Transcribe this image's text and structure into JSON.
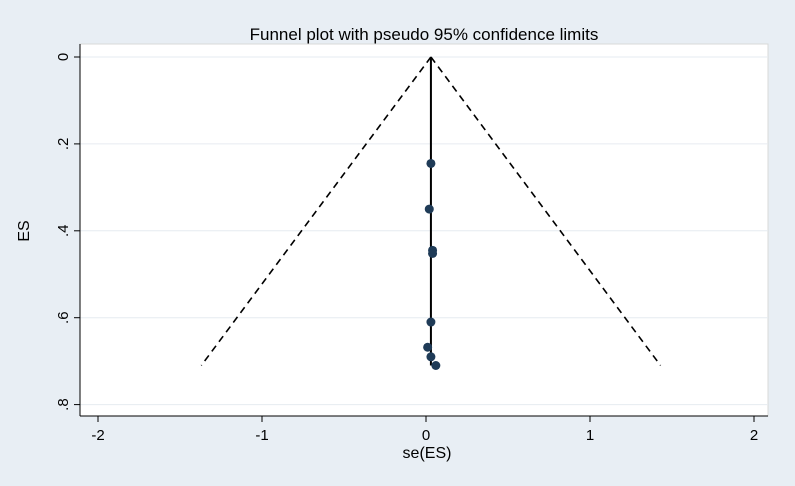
{
  "chart_data": {
    "type": "scatter",
    "title": "Funnel plot with pseudo 95% confidence limits",
    "xlabel": "se(ES)",
    "ylabel": "ES",
    "xlim": [
      -2,
      2
    ],
    "ylim": [
      0,
      0.8
    ],
    "y_reversed": true,
    "xticks": [
      -2,
      -1,
      0,
      1,
      2
    ],
    "xtick_labels": [
      "-2",
      "-1",
      "0",
      "1",
      "2"
    ],
    "yticks": [
      0,
      0.2,
      0.4,
      0.6,
      0.8
    ],
    "ytick_labels": [
      "0",
      ".2",
      ".4",
      ".6",
      ".8"
    ],
    "grid": "horizontal",
    "points": [
      {
        "x": 0.03,
        "y": 0.245
      },
      {
        "x": 0.02,
        "y": 0.35
      },
      {
        "x": 0.04,
        "y": 0.445
      },
      {
        "x": 0.04,
        "y": 0.452
      },
      {
        "x": 0.03,
        "y": 0.61
      },
      {
        "x": 0.01,
        "y": 0.668
      },
      {
        "x": 0.03,
        "y": 0.69
      },
      {
        "x": 0.06,
        "y": 0.71
      }
    ],
    "reference_line": {
      "x": 0.03,
      "y_from": 0,
      "y_to": 0.71
    },
    "confidence_limits": {
      "apex": {
        "x": 0.03,
        "y": 0
      },
      "left_end": {
        "x": -1.37,
        "y": 0.71
      },
      "right_end": {
        "x": 1.43,
        "y": 0.71
      }
    },
    "colors": {
      "outer_background": "#e8eef4",
      "plot_background": "#ffffff",
      "grid": "#e6ebf0",
      "marker": "#1f3b57",
      "line": "#000000"
    }
  }
}
